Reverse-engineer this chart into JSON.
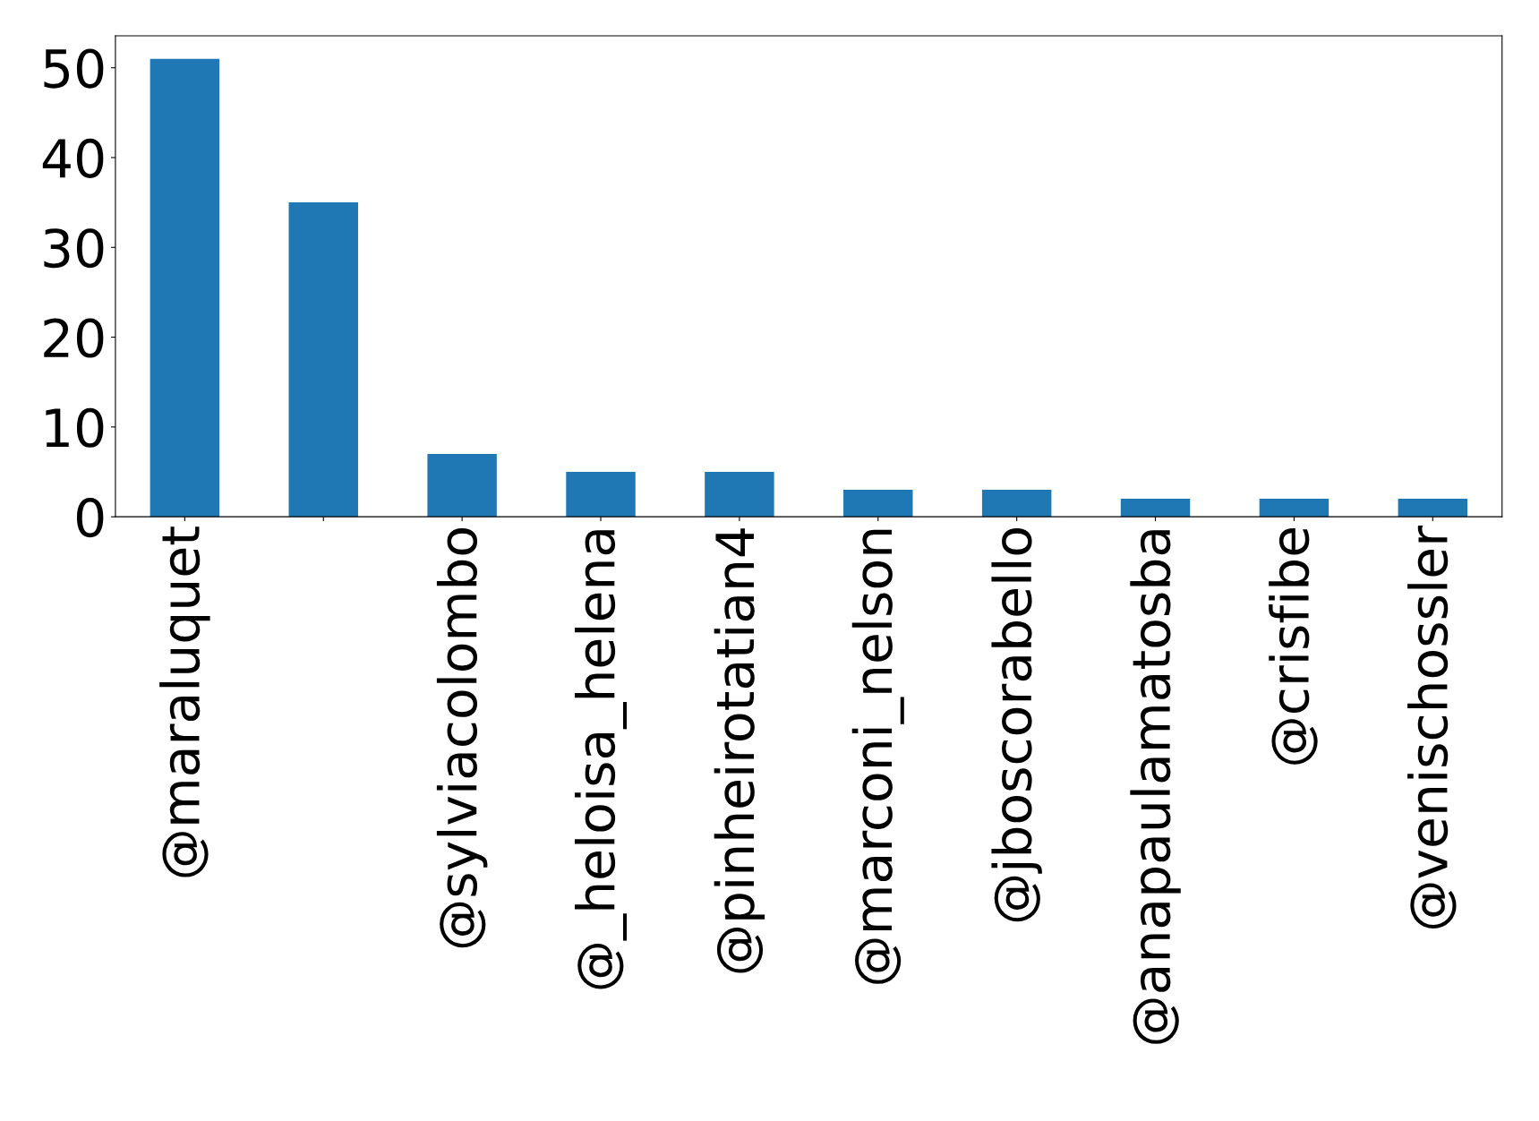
{
  "chart_data": {
    "type": "bar",
    "categories": [
      "@maraluquet",
      null,
      "@sylviacolombo",
      "@_heloisa_helena",
      "@pinheirotatian4",
      "@marconi_nelson",
      "@jboscorabello",
      "@anapaulamatosba",
      "@crisfibe",
      "@venischossler"
    ],
    "values": [
      51,
      35,
      7,
      5,
      5,
      3,
      3,
      2,
      2,
      2
    ],
    "color": "#1f77b4",
    "ylim": [
      0,
      53.55
    ],
    "yticks": [
      0,
      10,
      20,
      30,
      40,
      50
    ],
    "grid": false
  }
}
